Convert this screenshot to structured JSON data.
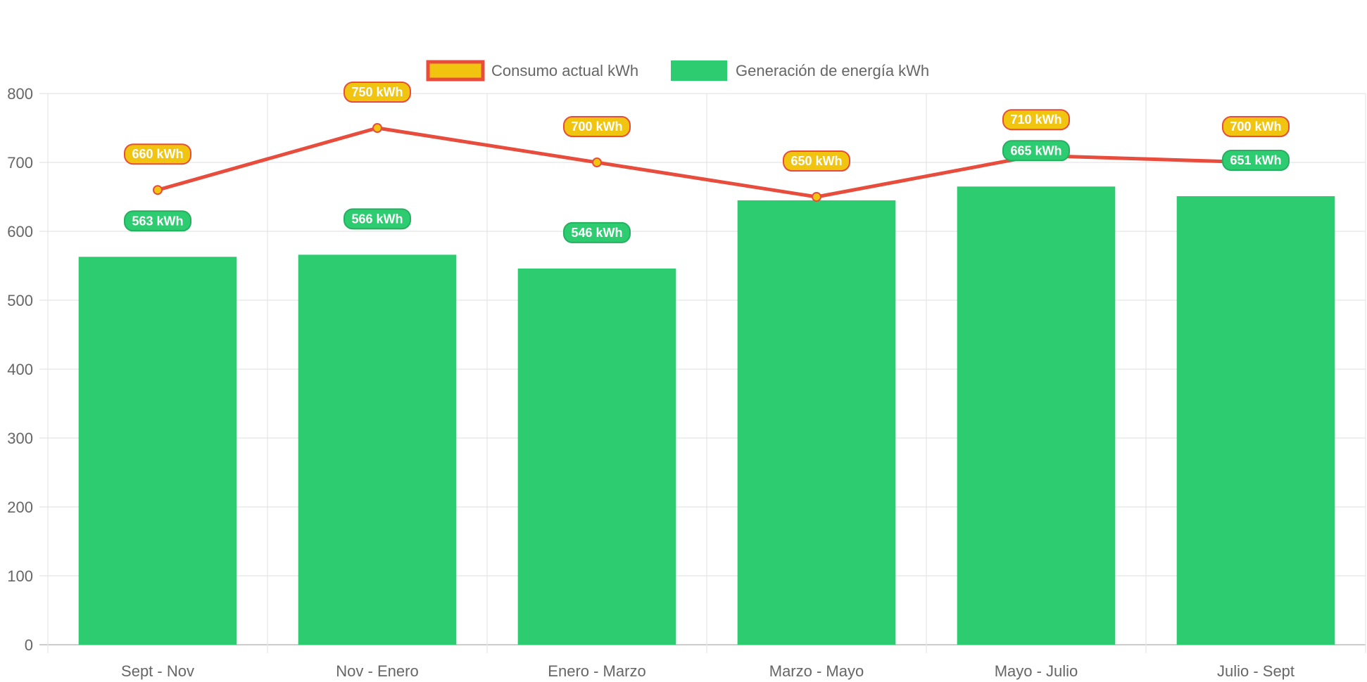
{
  "chart_data": {
    "type": "bar",
    "categories": [
      "Sept - Nov",
      "Nov - Enero",
      "Enero - Marzo",
      "Marzo - Mayo",
      "Mayo - Julio",
      "Julio - Sept"
    ],
    "series": [
      {
        "name": "Consumo actual kWh",
        "type": "line",
        "values": [
          660,
          750,
          700,
          650,
          710,
          700
        ],
        "color": "#e74c3c",
        "point_color": "#f1c40f"
      },
      {
        "name": "Generación de energía kWh",
        "type": "bar",
        "values": [
          563,
          566,
          546,
          645,
          665,
          651
        ],
        "color": "#2ecc71"
      }
    ],
    "data_labels": {
      "Consumo actual kWh": [
        "660 kWh",
        "750 kWh",
        "700 kWh",
        "650 kWh",
        "710 kWh",
        "700 kWh"
      ],
      "Generación de energía kWh": [
        "563 kWh",
        "566 kWh",
        "546 kWh",
        "",
        "665 kWh",
        "651 kWh"
      ]
    },
    "yticks": [
      "0",
      "100",
      "200",
      "300",
      "400",
      "500",
      "600",
      "700",
      "800"
    ],
    "ylim": [
      0,
      800
    ],
    "grid": true,
    "legend_position": "top",
    "xlabel": "",
    "ylabel": "",
    "title": ""
  }
}
